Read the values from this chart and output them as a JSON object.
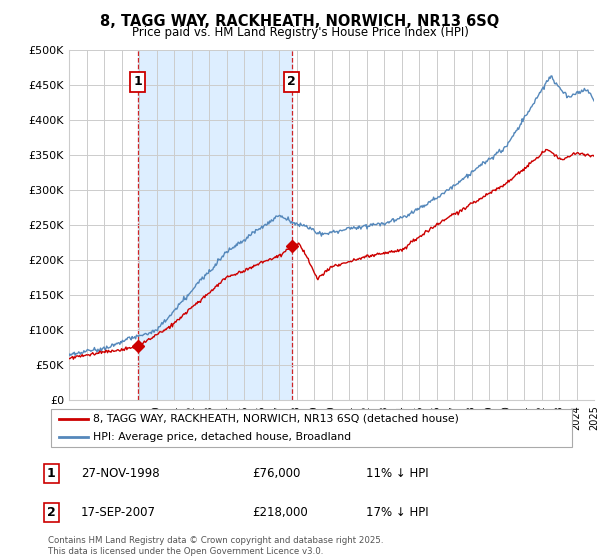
{
  "title": "8, TAGG WAY, RACKHEATH, NORWICH, NR13 6SQ",
  "subtitle": "Price paid vs. HM Land Registry's House Price Index (HPI)",
  "ylim": [
    0,
    500000
  ],
  "yticks": [
    0,
    50000,
    100000,
    150000,
    200000,
    250000,
    300000,
    350000,
    400000,
    450000,
    500000
  ],
  "ytick_labels": [
    "£0",
    "£50K",
    "£100K",
    "£150K",
    "£200K",
    "£250K",
    "£300K",
    "£350K",
    "£400K",
    "£450K",
    "£500K"
  ],
  "xmin": 1995,
  "xmax": 2025,
  "red_color": "#cc0000",
  "blue_color": "#5588bb",
  "shade_color": "#ddeeff",
  "grid_color": "#cccccc",
  "bg_color": "#ffffff",
  "purchase1_year": 1998.92,
  "purchase1_price": 76000,
  "purchase2_year": 2007.72,
  "purchase2_price": 218000,
  "legend_red": "8, TAGG WAY, RACKHEATH, NORWICH, NR13 6SQ (detached house)",
  "legend_blue": "HPI: Average price, detached house, Broadland",
  "table": [
    {
      "num": "1",
      "date": "27-NOV-1998",
      "price": "£76,000",
      "diff": "11% ↓ HPI"
    },
    {
      "num": "2",
      "date": "17-SEP-2007",
      "price": "£218,000",
      "diff": "17% ↓ HPI"
    }
  ],
  "footer": "Contains HM Land Registry data © Crown copyright and database right 2025.\nThis data is licensed under the Open Government Licence v3.0."
}
